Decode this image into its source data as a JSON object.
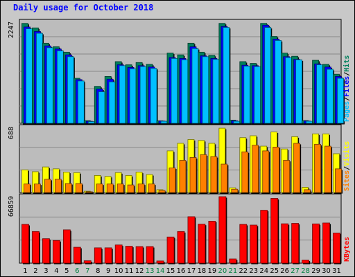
{
  "title": "Daily usage for October 2018",
  "colors": {
    "hits": "#00805c",
    "files": "#0000ff",
    "pages": "#00c0ff",
    "visits": "#ffff00",
    "sites": "#ff8000",
    "kbytes": "#ff0000",
    "weekday": "#000000",
    "weekend": "#008040"
  },
  "chart_data": [
    {
      "type": "bar",
      "panel": "top",
      "ymax_label": "2247",
      "ylim": [
        0,
        2247
      ],
      "legend": [
        "Pages",
        "/",
        "Files",
        "/",
        "Hits"
      ],
      "categories": [
        "1",
        "2",
        "3",
        "4",
        "5",
        "6",
        "7",
        "8",
        "9",
        "10",
        "11",
        "12",
        "13",
        "14",
        "15",
        "16",
        "17",
        "18",
        "19",
        "20",
        "21",
        "22",
        "23",
        "24",
        "25",
        "26",
        "27",
        "28",
        "29",
        "30",
        "31"
      ],
      "weekend_days": [
        "6",
        "7",
        "13",
        "14",
        "20",
        "21",
        "27",
        "28"
      ],
      "series": [
        {
          "name": "Hits",
          "values": [
            2220,
            2120,
            1780,
            1700,
            1580,
            1000,
            58,
            820,
            1040,
            1370,
            1300,
            1350,
            1310,
            55,
            1560,
            1520,
            1780,
            1580,
            1510,
            2220,
            70,
            1370,
            1330,
            2220,
            1930,
            1560,
            1490,
            60,
            1400,
            1310,
            1090
          ]
        },
        {
          "name": "Files",
          "values": [
            2140,
            2040,
            1720,
            1650,
            1520,
            970,
            45,
            760,
            980,
            1300,
            1240,
            1280,
            1250,
            50,
            1460,
            1440,
            1700,
            1500,
            1440,
            2150,
            55,
            1290,
            1280,
            2180,
            1870,
            1480,
            1420,
            50,
            1320,
            1250,
            1040
          ]
        },
        {
          "name": "Pages",
          "values": [
            2100,
            2000,
            1680,
            1610,
            1480,
            940,
            38,
            700,
            920,
            1280,
            1210,
            1260,
            1220,
            45,
            1440,
            1410,
            1660,
            1480,
            1420,
            2130,
            45,
            1270,
            1260,
            2130,
            1840,
            1460,
            1410,
            45,
            1300,
            1200,
            1000
          ]
        }
      ]
    },
    {
      "type": "bar",
      "panel": "middle",
      "ymax_label": "688",
      "ylim": [
        0,
        688
      ],
      "legend": [
        "Sites",
        "/",
        "Visits"
      ],
      "categories": [
        "1",
        "2",
        "3",
        "4",
        "5",
        "6",
        "7",
        "8",
        "9",
        "10",
        "11",
        "12",
        "13",
        "14",
        "15",
        "16",
        "17",
        "18",
        "19",
        "20",
        "21",
        "22",
        "23",
        "24",
        "25",
        "26",
        "27",
        "28",
        "29",
        "30",
        "31"
      ],
      "weekend_days": [
        "6",
        "7",
        "13",
        "14",
        "20",
        "21",
        "27",
        "28"
      ],
      "series": [
        {
          "name": "Visits",
          "values": [
            240,
            220,
            270,
            250,
            215,
            210,
            14,
            180,
            170,
            210,
            180,
            215,
            190,
            30,
            440,
            520,
            560,
            550,
            520,
            680,
            50,
            580,
            600,
            490,
            640,
            460,
            590,
            55,
            620,
            620,
            410
          ]
        },
        {
          "name": "Sites",
          "values": [
            90,
            90,
            140,
            140,
            95,
            95,
            8,
            90,
            90,
            90,
            80,
            90,
            90,
            22,
            260,
            340,
            370,
            400,
            380,
            300,
            35,
            430,
            500,
            440,
            480,
            340,
            520,
            30,
            510,
            490,
            250
          ]
        }
      ]
    },
    {
      "type": "bar",
      "panel": "bottom",
      "ymax_label": "66859",
      "ylim": [
        0,
        66859
      ],
      "legend": [
        "KBytes"
      ],
      "categories": [
        "1",
        "2",
        "3",
        "4",
        "5",
        "6",
        "7",
        "8",
        "9",
        "10",
        "11",
        "12",
        "13",
        "14",
        "15",
        "16",
        "17",
        "18",
        "19",
        "20",
        "21",
        "22",
        "23",
        "24",
        "25",
        "26",
        "27",
        "28",
        "29",
        "30",
        "31"
      ],
      "weekend_days": [
        "6",
        "7",
        "13",
        "14",
        "20",
        "21",
        "27",
        "28"
      ],
      "series": [
        {
          "name": "KBytes",
          "values": [
            39000,
            31800,
            24600,
            22800,
            33500,
            16000,
            2400,
            15400,
            15400,
            18300,
            17000,
            16700,
            16700,
            2200,
            26300,
            31800,
            46700,
            39200,
            42200,
            66859,
            4200,
            39000,
            38300,
            53200,
            65100,
            39600,
            40000,
            3100,
            39500,
            40400,
            30300
          ]
        }
      ]
    }
  ]
}
